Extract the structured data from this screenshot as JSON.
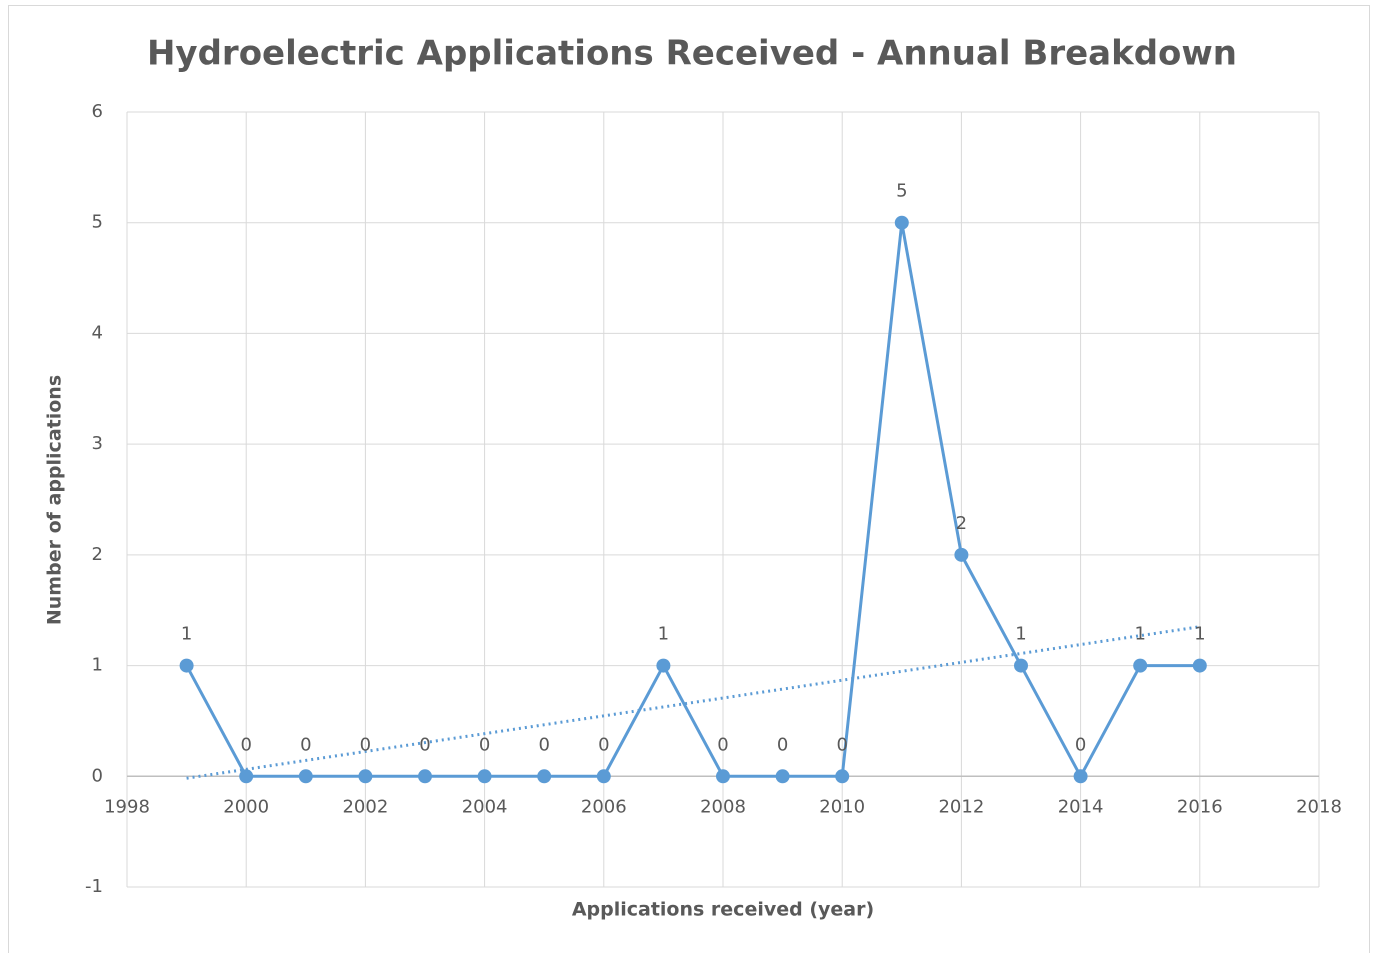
{
  "chart_data": {
    "type": "line",
    "title": "Hydroelectric Applications Received - Annual Breakdown",
    "xlabel": "Applications received (year)",
    "ylabel": "Number of applications",
    "x": [
      1999,
      2000,
      2001,
      2002,
      2003,
      2004,
      2005,
      2006,
      2007,
      2008,
      2009,
      2010,
      2011,
      2012,
      2013,
      2014,
      2015,
      2016
    ],
    "values": [
      1,
      0,
      0,
      0,
      0,
      0,
      0,
      0,
      1,
      0,
      0,
      0,
      5,
      2,
      1,
      0,
      1,
      1
    ],
    "color": "#5b9bd5",
    "xlim": [
      1998,
      2018
    ],
    "xticks": [
      1998,
      2000,
      2002,
      2004,
      2006,
      2008,
      2010,
      2012,
      2014,
      2016,
      2018
    ],
    "ylim": [
      -1,
      6
    ],
    "yticks": [
      -1,
      0,
      1,
      2,
      3,
      4,
      5,
      6
    ],
    "grid": true,
    "data_labels": true,
    "trendline": "linear"
  }
}
